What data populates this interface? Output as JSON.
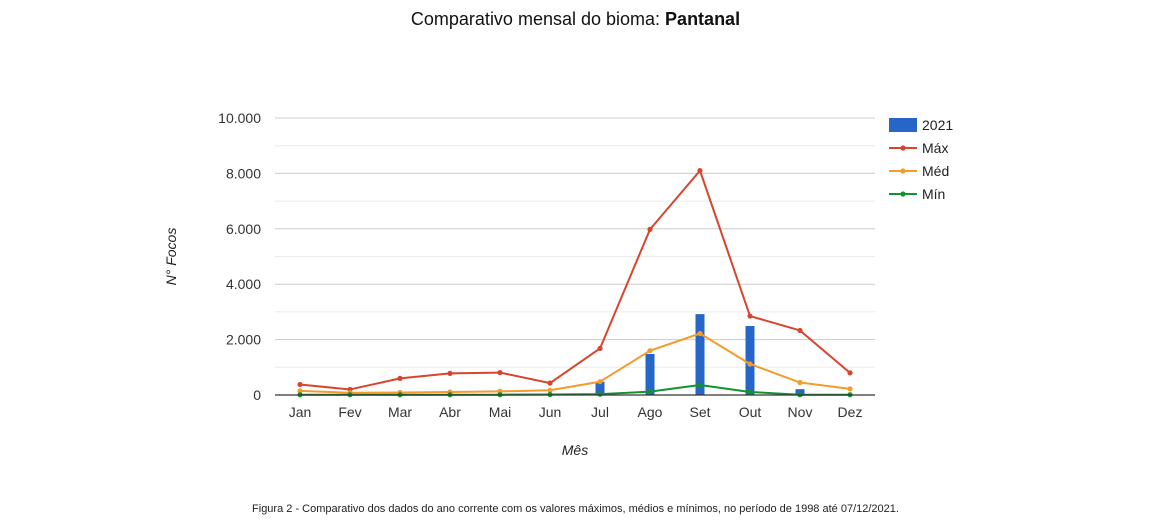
{
  "header": {
    "title_prefix": "Comparativo mensal do bioma:",
    "title_biome": "Pantanal"
  },
  "caption": "Figura 2 - Comparativo dos dados do ano corrente com os valores máximos, médios e mínimos, no período de 1998 até 07/12/2021.",
  "chart_data": {
    "type": "bar",
    "title": "Comparativo mensal do bioma: Pantanal",
    "xlabel": "Mês",
    "ylabel": "N° Focos",
    "ylim": [
      0,
      10000
    ],
    "yticks": [
      0,
      2000,
      4000,
      6000,
      8000,
      10000
    ],
    "ytick_labels": [
      "0",
      "2.000",
      "4.000",
      "6.000",
      "8.000",
      "10.000"
    ],
    "minor_gridlines": true,
    "legend_position": "right",
    "categories": [
      "Jan",
      "Fev",
      "Mar",
      "Abr",
      "Mai",
      "Jun",
      "Jul",
      "Ago",
      "Set",
      "Out",
      "Nov",
      "Dez"
    ],
    "series": [
      {
        "name": "2021",
        "kind": "bar",
        "color": "#2566c8",
        "values": [
          0,
          0,
          0,
          0,
          0,
          0,
          480,
          1480,
          2920,
          2490,
          210,
          null
        ]
      },
      {
        "name": "Máx",
        "kind": "line",
        "color": "#d8442c",
        "values": [
          380,
          200,
          600,
          780,
          810,
          430,
          1680,
          5980,
          8100,
          2850,
          2330,
          800
        ]
      },
      {
        "name": "Méd",
        "kind": "line",
        "color": "#f39c2b",
        "values": [
          150,
          80,
          90,
          110,
          130,
          170,
          480,
          1600,
          2220,
          1120,
          450,
          220
        ]
      },
      {
        "name": "Mín",
        "kind": "line",
        "color": "#109430",
        "values": [
          10,
          10,
          10,
          10,
          10,
          20,
          30,
          120,
          360,
          110,
          10,
          10
        ]
      }
    ]
  }
}
